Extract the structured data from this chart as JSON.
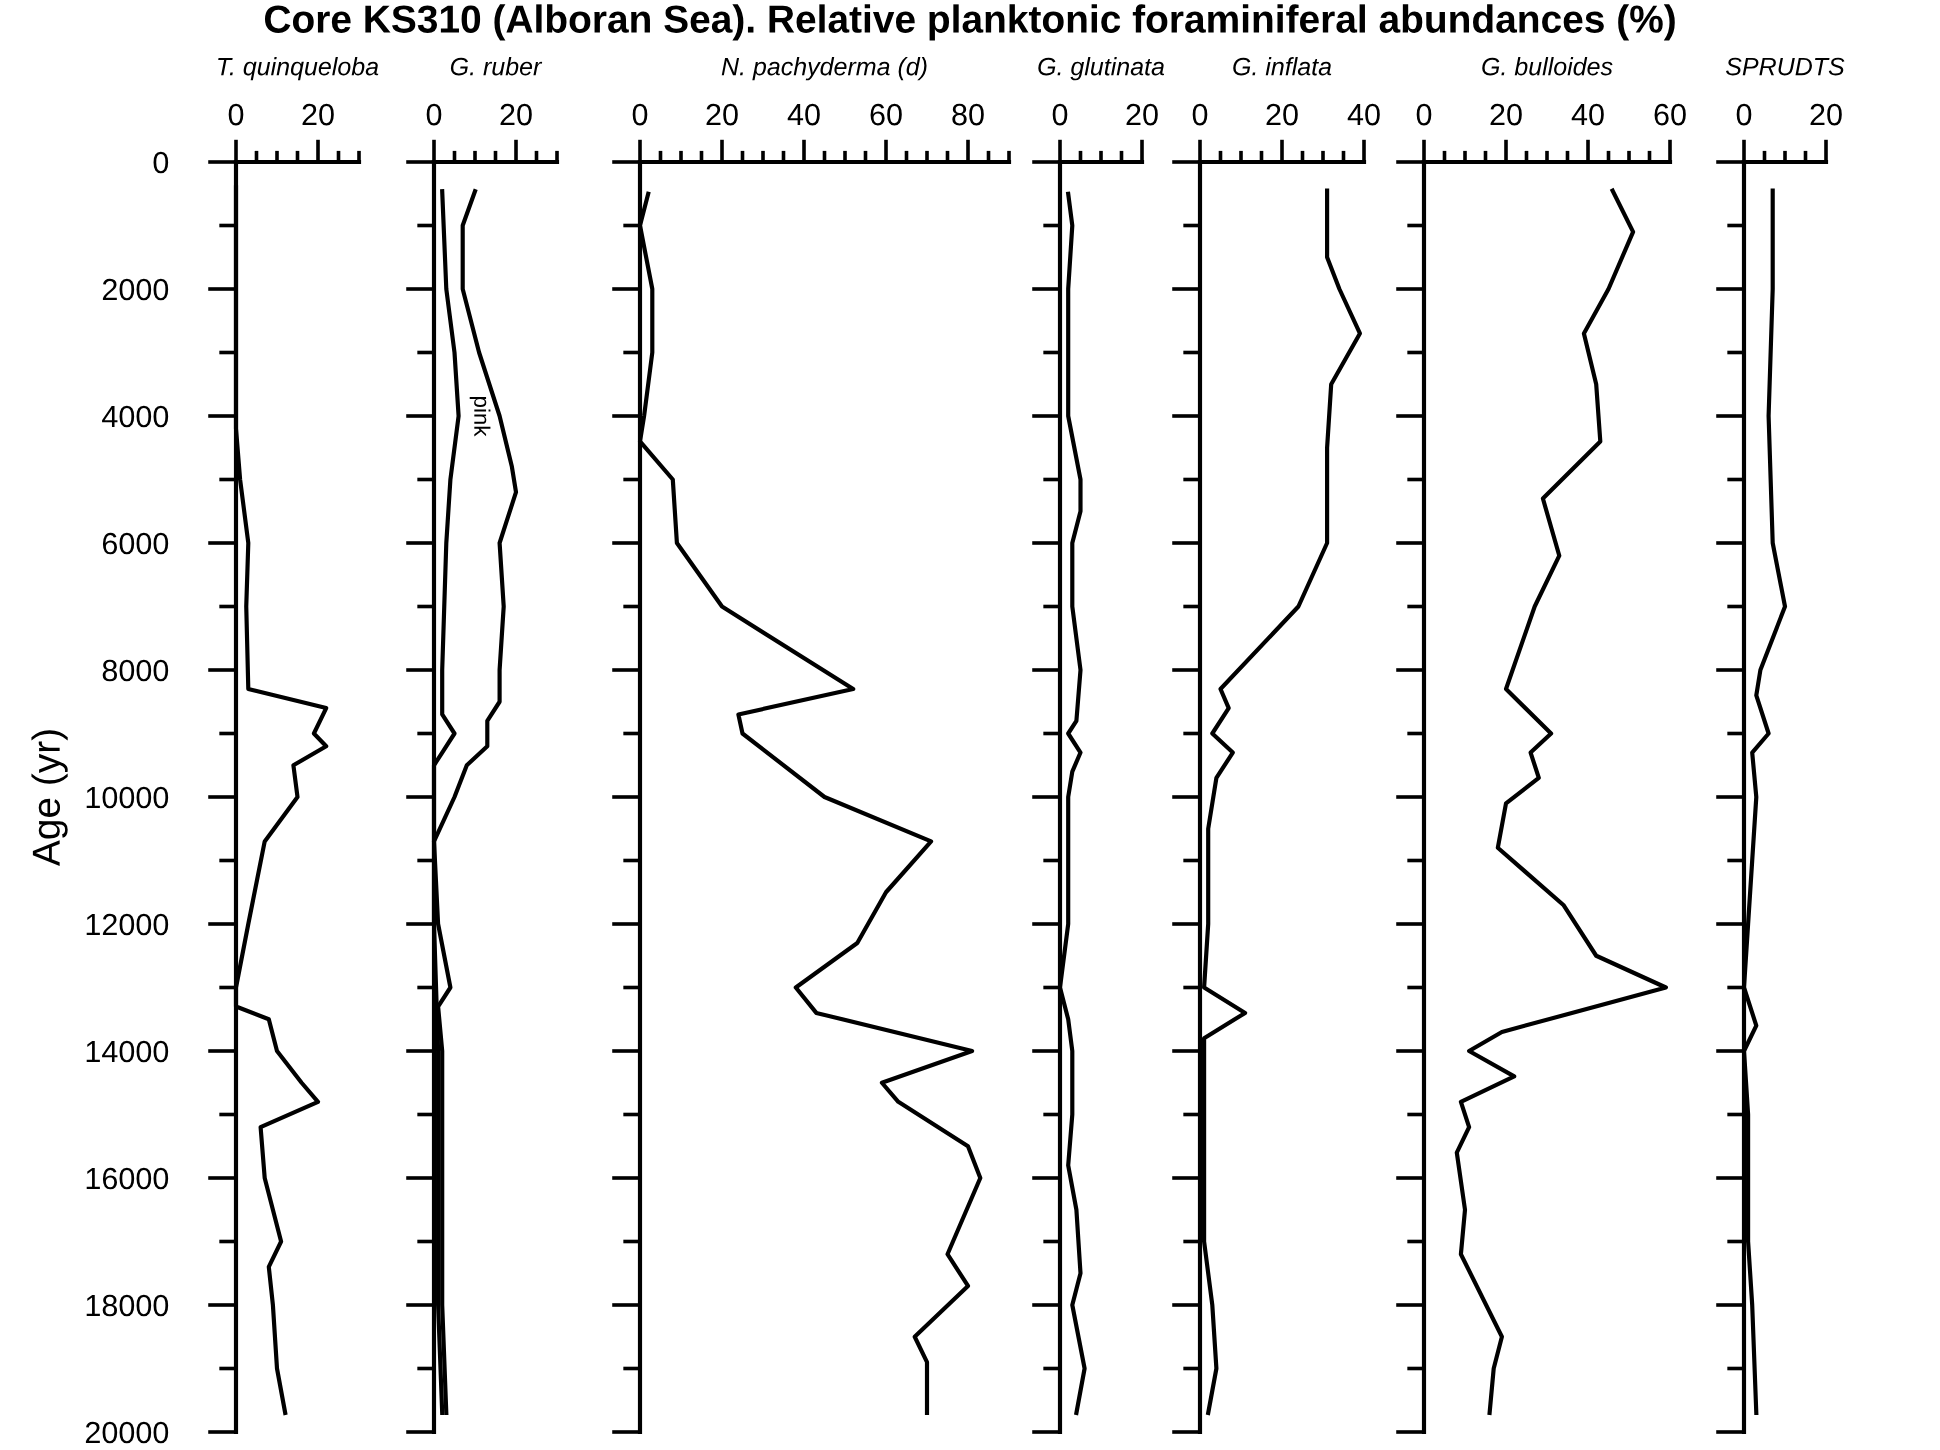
{
  "chart_data": [
    {
      "type": "line",
      "title": "Core KS310 (Alboran Sea). Relative planktonic foraminiferal abundances (%)",
      "xlabel": "T. quinqueloba",
      "ylabel": "Age (yr)",
      "xlim": [
        0,
        30
      ],
      "xticks": [
        0,
        {
          "value": 5,
          "label": null
        },
        {
          "value": 10,
          "label": null
        },
        {
          "value": 15,
          "label": null
        },
        20,
        {
          "value": 25,
          "label": null
        },
        {
          "value": 30,
          "label": null
        }
      ],
      "ylim": [
        20000,
        0
      ],
      "yticks": [
        0,
        {
          "value": 1000,
          "label": null
        },
        2000,
        {
          "value": 3000,
          "label": null
        },
        4000,
        {
          "value": 5000,
          "label": null
        },
        6000,
        {
          "value": 7000,
          "label": null
        },
        8000,
        {
          "value": 9000,
          "label": null
        },
        10000,
        {
          "value": 11000,
          "label": null
        },
        12000,
        {
          "value": 13000,
          "label": null
        },
        14000,
        {
          "value": 15000,
          "label": null
        },
        16000,
        {
          "value": 17000,
          "label": null
        },
        18000,
        {
          "value": 19000,
          "label": null
        },
        20000
      ],
      "grid": false,
      "legend": false,
      "series": [
        {
          "color": "#000000",
          "x": [
            0,
            0,
            1,
            3,
            2.5,
            3,
            22,
            19,
            22,
            14,
            15,
            7,
            3,
            0,
            0,
            8,
            10,
            16,
            20,
            6,
            7,
            11,
            8,
            9,
            10,
            12
          ],
          "values": [
            400,
            4200,
            5000,
            6000,
            7000,
            8300,
            8600,
            9000,
            9200,
            9500,
            10000,
            10700,
            12000,
            13000,
            13300,
            13500,
            14000,
            14500,
            14800,
            15200,
            16000,
            17000,
            17400,
            18000,
            19000,
            19700
          ]
        }
      ]
    },
    {
      "type": "line",
      "xlabel": "G. ruber",
      "xlim": [
        0,
        30
      ],
      "xticks": [
        0,
        {
          "value": 5,
          "label": null
        },
        {
          "value": 10,
          "label": null
        },
        {
          "value": 15,
          "label": null
        },
        20,
        {
          "value": 25,
          "label": null
        },
        {
          "value": 30,
          "label": null
        }
      ],
      "ylim": [
        20000,
        0
      ],
      "yticks": [
        0,
        {
          "value": 1000,
          "label": null
        },
        2000,
        {
          "value": 3000,
          "label": null
        },
        4000,
        {
          "value": 5000,
          "label": null
        },
        6000,
        {
          "value": 7000,
          "label": null
        },
        8000,
        {
          "value": 9000,
          "label": null
        },
        10000,
        {
          "value": 11000,
          "label": null
        },
        12000,
        {
          "value": 13000,
          "label": null
        },
        14000,
        {
          "value": 15000,
          "label": null
        },
        16000,
        {
          "value": 17000,
          "label": null
        },
        18000,
        {
          "value": 19000,
          "label": null
        },
        20000
      ],
      "tick_labels": "x",
      "grid": false,
      "legend": false,
      "series": [
        {
          "color": "#000000",
          "x": [
            10,
            7,
            7,
            11,
            16,
            19,
            20,
            16,
            17,
            16,
            16,
            13,
            13,
            8,
            5,
            0,
            1,
            4,
            1,
            2,
            2,
            2,
            3
          ],
          "values": [
            460,
            1000,
            2000,
            3000,
            4000,
            4800,
            5200,
            6000,
            7000,
            8000,
            8500,
            8800,
            9200,
            9500,
            10000,
            10700,
            12000,
            13000,
            13300,
            14000,
            16000,
            18000,
            19700
          ]
        },
        {
          "name": "pink",
          "color": "#000000",
          "x": [
            2,
            3,
            5,
            6,
            4,
            3,
            2.5,
            2,
            2,
            5,
            2,
            0,
            0,
            0,
            1,
            1,
            1,
            2
          ],
          "values": [
            460,
            2000,
            3000,
            4000,
            5000,
            6000,
            7000,
            8000,
            8700,
            9000,
            9300,
            9500,
            10000,
            12000,
            14000,
            16000,
            18000,
            19700
          ]
        }
      ]
    },
    {
      "type": "line",
      "xlabel": "N. pachyderma (d)",
      "xlim": [
        0,
        90
      ],
      "xticks": [
        0,
        {
          "value": 5,
          "label": null
        },
        {
          "value": 10,
          "label": null
        },
        {
          "value": 15,
          "label": null
        },
        20,
        {
          "value": 25,
          "label": null
        },
        {
          "value": 30,
          "label": null
        },
        {
          "value": 35,
          "label": null
        },
        40,
        {
          "value": 45,
          "label": null
        },
        {
          "value": 50,
          "label": null
        },
        {
          "value": 55,
          "label": null
        },
        60,
        {
          "value": 65,
          "label": null
        },
        {
          "value": 70,
          "label": null
        },
        {
          "value": 75,
          "label": null
        },
        80,
        {
          "value": 85,
          "label": null
        },
        {
          "value": 90,
          "label": null
        }
      ],
      "ylim": [
        20000,
        0
      ],
      "yticks": [
        0,
        {
          "value": 1000,
          "label": null
        },
        2000,
        {
          "value": 3000,
          "label": null
        },
        4000,
        {
          "value": 5000,
          "label": null
        },
        6000,
        {
          "value": 7000,
          "label": null
        },
        8000,
        {
          "value": 9000,
          "label": null
        },
        10000,
        {
          "value": 11000,
          "label": null
        },
        12000,
        {
          "value": 13000,
          "label": null
        },
        14000,
        {
          "value": 15000,
          "label": null
        },
        16000,
        {
          "value": 17000,
          "label": null
        },
        18000,
        {
          "value": 19000,
          "label": null
        },
        20000
      ],
      "tick_labels": "x",
      "grid": false,
      "legend": false,
      "series": [
        {
          "color": "#000000",
          "x": [
            2,
            0,
            3,
            3,
            1,
            0,
            8,
            9,
            20,
            52,
            24,
            25,
            45,
            71,
            60,
            53,
            38,
            43,
            81,
            59,
            63,
            80,
            83,
            75,
            80,
            67,
            70,
            70
          ],
          "values": [
            500,
            1000,
            2000,
            3000,
            4000,
            4400,
            5000,
            6000,
            7000,
            8300,
            8700,
            9000,
            10000,
            10700,
            11500,
            12300,
            13000,
            13400,
            14000,
            14500,
            14800,
            15500,
            16000,
            17200,
            17700,
            18500,
            18900,
            19700
          ]
        }
      ]
    },
    {
      "type": "line",
      "xlabel": "G. glutinata",
      "xlim": [
        0,
        20
      ],
      "xticks": [
        0,
        {
          "value": 5,
          "label": null
        },
        {
          "value": 10,
          "label": null
        },
        {
          "value": 15,
          "label": null
        },
        20
      ],
      "ylim": [
        20000,
        0
      ],
      "yticks": [
        0,
        {
          "value": 1000,
          "label": null
        },
        2000,
        {
          "value": 3000,
          "label": null
        },
        4000,
        {
          "value": 5000,
          "label": null
        },
        6000,
        {
          "value": 7000,
          "label": null
        },
        8000,
        {
          "value": 9000,
          "label": null
        },
        10000,
        {
          "value": 11000,
          "label": null
        },
        12000,
        {
          "value": 13000,
          "label": null
        },
        14000,
        {
          "value": 15000,
          "label": null
        },
        16000,
        {
          "value": 17000,
          "label": null
        },
        18000,
        {
          "value": 19000,
          "label": null
        },
        20000
      ],
      "tick_labels": "x",
      "grid": false,
      "legend": false,
      "series": [
        {
          "color": "#000000",
          "x": [
            2,
            3,
            2,
            2,
            5,
            5,
            3,
            3,
            5,
            4,
            2,
            5,
            3,
            2,
            2,
            0,
            2,
            3,
            3,
            2,
            4,
            5,
            3,
            6,
            4
          ],
          "values": [
            500,
            1000,
            2000,
            4000,
            5000,
            5500,
            6000,
            7000,
            8000,
            8800,
            9000,
            9300,
            9600,
            10000,
            12000,
            13000,
            13500,
            14000,
            15000,
            15800,
            16500,
            17500,
            18000,
            19000,
            19700
          ]
        }
      ]
    },
    {
      "type": "line",
      "xlabel": "G. inflata",
      "xlim": [
        0,
        40
      ],
      "xticks": [
        0,
        {
          "value": 5,
          "label": null
        },
        {
          "value": 10,
          "label": null
        },
        {
          "value": 15,
          "label": null
        },
        20,
        {
          "value": 25,
          "label": null
        },
        {
          "value": 30,
          "label": null
        },
        {
          "value": 35,
          "label": null
        },
        40
      ],
      "ylim": [
        20000,
        0
      ],
      "yticks": [
        0,
        {
          "value": 1000,
          "label": null
        },
        2000,
        {
          "value": 3000,
          "label": null
        },
        4000,
        {
          "value": 5000,
          "label": null
        },
        6000,
        {
          "value": 7000,
          "label": null
        },
        8000,
        {
          "value": 9000,
          "label": null
        },
        10000,
        {
          "value": 11000,
          "label": null
        },
        12000,
        {
          "value": 13000,
          "label": null
        },
        14000,
        {
          "value": 15000,
          "label": null
        },
        16000,
        {
          "value": 17000,
          "label": null
        },
        18000,
        {
          "value": 19000,
          "label": null
        },
        20000
      ],
      "tick_labels": "x",
      "grid": false,
      "legend": false,
      "series": [
        {
          "color": "#000000",
          "x": [
            31,
            31,
            34,
            39,
            32,
            31,
            31,
            31,
            24,
            5,
            7,
            3,
            8,
            4,
            2,
            2,
            1,
            11,
            1,
            1,
            1,
            3,
            4,
            2
          ],
          "values": [
            450,
            1500,
            2000,
            2700,
            3500,
            4500,
            5500,
            6000,
            7000,
            8300,
            8600,
            9000,
            9300,
            9700,
            10500,
            12000,
            13000,
            13400,
            13800,
            15000,
            17000,
            18000,
            19000,
            19700
          ]
        }
      ]
    },
    {
      "type": "line",
      "xlabel": "G. bulloides",
      "xlim": [
        0,
        60
      ],
      "xticks": [
        0,
        {
          "value": 5,
          "label": null
        },
        {
          "value": 10,
          "label": null
        },
        {
          "value": 15,
          "label": null
        },
        20,
        {
          "value": 25,
          "label": null
        },
        {
          "value": 30,
          "label": null
        },
        {
          "value": 35,
          "label": null
        },
        40,
        {
          "value": 45,
          "label": null
        },
        {
          "value": 50,
          "label": null
        },
        {
          "value": 55,
          "label": null
        },
        60
      ],
      "ylim": [
        20000,
        0
      ],
      "yticks": [
        0,
        {
          "value": 1000,
          "label": null
        },
        2000,
        {
          "value": 3000,
          "label": null
        },
        4000,
        {
          "value": 5000,
          "label": null
        },
        6000,
        {
          "value": 7000,
          "label": null
        },
        8000,
        {
          "value": 9000,
          "label": null
        },
        10000,
        {
          "value": 11000,
          "label": null
        },
        12000,
        {
          "value": 13000,
          "label": null
        },
        14000,
        {
          "value": 15000,
          "label": null
        },
        16000,
        {
          "value": 17000,
          "label": null
        },
        18000,
        {
          "value": 19000,
          "label": null
        },
        20000
      ],
      "tick_labels": "x",
      "grid": false,
      "legend": false,
      "series": [
        {
          "color": "#000000",
          "x": [
            46,
            51,
            45,
            39,
            42,
            43,
            29,
            33,
            27,
            20,
            31,
            26,
            28,
            20,
            18,
            34,
            42,
            59,
            19,
            11,
            22,
            9,
            11,
            8,
            10,
            9,
            19,
            17,
            16
          ],
          "values": [
            450,
            1100,
            2000,
            2700,
            3500,
            4400,
            5300,
            6200,
            7000,
            8300,
            9000,
            9300,
            9700,
            10100,
            10800,
            11700,
            12500,
            13000,
            13700,
            14000,
            14400,
            14800,
            15200,
            15600,
            16500,
            17200,
            18500,
            19000,
            19700
          ]
        }
      ]
    },
    {
      "type": "line",
      "xlabel": "SPRUDTS",
      "xlim": [
        0,
        20
      ],
      "xticks": [
        0,
        {
          "value": 5,
          "label": null
        },
        {
          "value": 10,
          "label": null
        },
        {
          "value": 15,
          "label": null
        },
        20
      ],
      "ylim": [
        20000,
        0
      ],
      "yticks": [
        0,
        {
          "value": 1000,
          "label": null
        },
        2000,
        {
          "value": 3000,
          "label": null
        },
        4000,
        {
          "value": 5000,
          "label": null
        },
        6000,
        {
          "value": 7000,
          "label": null
        },
        8000,
        {
          "value": 9000,
          "label": null
        },
        10000,
        {
          "value": 11000,
          "label": null
        },
        12000,
        {
          "value": 13000,
          "label": null
        },
        14000,
        {
          "value": 15000,
          "label": null
        },
        16000,
        {
          "value": 17000,
          "label": null
        },
        18000,
        {
          "value": 19000,
          "label": null
        },
        20000
      ],
      "tick_labels": "x",
      "grid": false,
      "legend": false,
      "series": [
        {
          "color": "#000000",
          "x": [
            7,
            7,
            6,
            7,
            10,
            4,
            3,
            6,
            2,
            3,
            2,
            1,
            0,
            3,
            0,
            1,
            1,
            2,
            3
          ],
          "values": [
            450,
            2000,
            4000,
            6000,
            7000,
            8000,
            8400,
            9000,
            9300,
            10000,
            11000,
            12000,
            13000,
            13600,
            14000,
            15000,
            17000,
            18000,
            19700
          ]
        }
      ]
    }
  ]
}
